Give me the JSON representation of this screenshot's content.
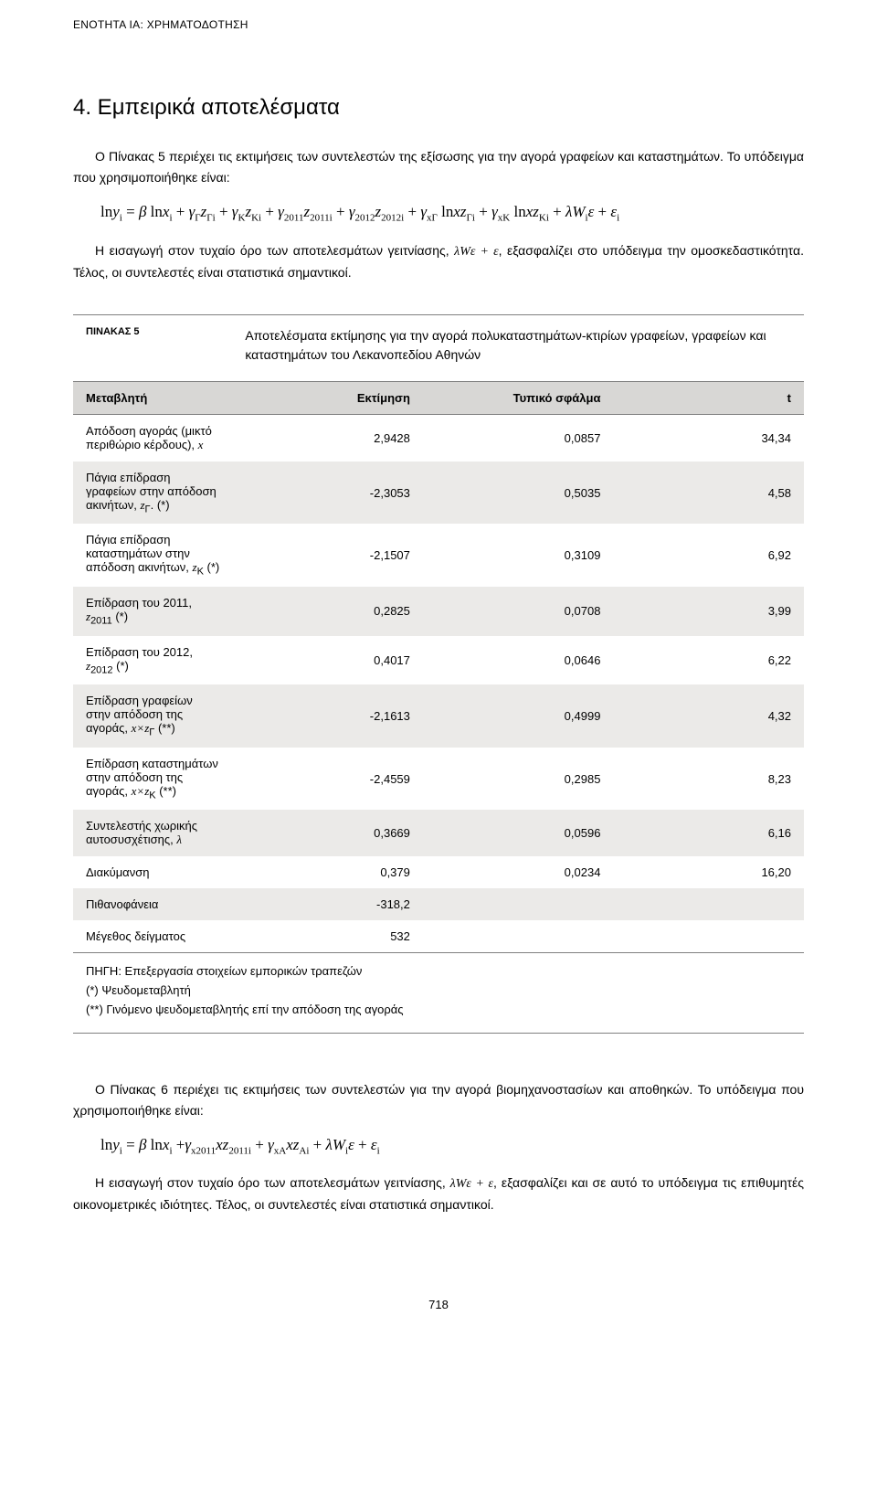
{
  "header": "ΕΝΟΤΗΤΑ ΙΑ: ΧΡΗΜΑΤΟΔΟΤΗΣΗ",
  "section_title": "4. Εμπειρικά αποτελέσματα",
  "para1": "Ο Πίνακας 5 περιέχει τις εκτιμήσεις των συντελεστών της εξίσωσης για την αγορά γραφείων και καταστημάτων. Το υπόδειγμα που χρησιμοποιήθηκε είναι:",
  "formula1_html": "ln<span class=\"it\">y</span><sub>i</sub> = <span class=\"it\">β</span> ln<span class=\"it\">x</span><sub>i</sub> + <span class=\"it\">γ</span><sub>Γ</sub><span class=\"it\">z</span><sub>Γi</sub> + <span class=\"it\">γ</span><sub>K</sub><span class=\"it\">z</span><sub>Ki</sub> + <span class=\"it\">γ</span><sub>2011</sub><span class=\"it\">z</span><sub>2011i</sub> + <span class=\"it\">γ</span><sub>2012</sub><span class=\"it\">z</span><sub>2012i</sub> + <span class=\"it\">γ</span><sub>xΓ</sub> ln<span class=\"it\">xz</span><sub>Γi</sub> + <span class=\"it\">γ</span><sub>xK</sub> ln<span class=\"it\">xz</span><sub>Ki</sub> + <span class=\"it\">λW</span><sub>i</sub><span class=\"it\">ε</span> + <span class=\"it\">ε</span><sub>i</sub>",
  "para2_html": "Η εισαγωγή στον τυχαίο όρο των αποτελεσμάτων γειτνίασης, <span class=\"math\" style=\"font-family:'Times New Roman',serif;font-style:italic;\">λWε + ε</span>, εξασφαλίζει στο υπόδειγμα την ομοσκεδαστικότητα. Τέλος, οι συντελεστές είναι στατιστικά σημαντικοί.",
  "table": {
    "caption_label": "ΠΙΝΑΚΑΣ 5",
    "caption_text": "Αποτελέσματα εκτίμησης για την αγορά πολυκαταστημάτων-κτιρίων γραφείων, γραφείων και καταστημάτων του Λεκανοπεδίου Αθηνών",
    "columns": [
      "Μεταβλητή",
      "Εκτίμηση",
      "Τυπικό σφάλμα",
      "t"
    ],
    "rows": [
      {
        "label_html": "Απόδοση αγοράς (μικτό περιθώριο κέρδους), <span class=\"math\">x</span>",
        "v": [
          "2,9428",
          "0,0857",
          "34,34"
        ]
      },
      {
        "label_html": "Πάγια επίδραση γραφείων στην απόδοση ακινήτων, <span class=\"math\">z</span><sub>Γ</sub>. (*)",
        "v": [
          "-2,3053",
          "0,5035",
          "4,58"
        ]
      },
      {
        "label_html": "Πάγια επίδραση καταστημάτων στην απόδοση ακινήτων, <span class=\"math\">z</span><sub>K</sub> (*)",
        "v": [
          "-2,1507",
          "0,3109",
          "6,92"
        ]
      },
      {
        "label_html": "Επίδραση του 2011, <span class=\"math\">z</span><sub>2011</sub> (*)",
        "v": [
          "0,2825",
          "0,0708",
          "3,99"
        ]
      },
      {
        "label_html": "Επίδραση του 2012, <span class=\"math\">z</span><sub>2012</sub> (*)",
        "v": [
          "0,4017",
          "0,0646",
          "6,22"
        ]
      },
      {
        "label_html": "Επίδραση γραφείων στην απόδοση της αγοράς, <span class=\"math\">x×z</span><sub>Γ</sub> (**)",
        "v": [
          "-2,1613",
          "0,4999",
          "4,32"
        ]
      },
      {
        "label_html": "Επίδραση καταστημάτων στην απόδοση της αγοράς, <span class=\"math\">x×z</span><sub>K</sub> (**)",
        "v": [
          "-2,4559",
          "0,2985",
          "8,23"
        ]
      },
      {
        "label_html": "Συντελεστής χωρικής αυτοσυσχέτισης, <span class=\"math\">λ</span>",
        "v": [
          "0,3669",
          "0,0596",
          "6,16"
        ]
      },
      {
        "label_html": "Διακύμανση",
        "v": [
          "0,379",
          "0,0234",
          "16,20"
        ]
      },
      {
        "label_html": "Πιθανοφάνεια",
        "v": [
          "-318,2",
          "",
          ""
        ]
      },
      {
        "label_html": "Μέγεθος δείγματος",
        "v": [
          "532",
          "",
          ""
        ]
      }
    ],
    "notes": "ΠΗΓΗ: Επεξεργασία στοιχείων εμπορικών τραπεζών\n(*) Ψευδομεταβλητή\n(**) Γινόμενο ψευδομεταβλητής επί την απόδοση της αγοράς"
  },
  "para3": "Ο Πίνακας 6 περιέχει τις εκτιμήσεις των συντελεστών για την αγορά βιομηχανοστασίων και αποθηκών. Το υπόδειγμα που χρησιμοποιήθηκε είναι:",
  "formula2_html": "ln<span class=\"it\">y</span><sub>i</sub> = <span class=\"it\">β</span> ln<span class=\"it\">x</span><sub>i</sub> +<span class=\"it\">γ</span><sub>x2011</sub><span class=\"it\">xz</span><sub>2011i</sub> + <span class=\"it\">γ</span><sub>xA</sub><span class=\"it\">xz</span><sub>Ai</sub> + <span class=\"it\">λW</span><sub>i</sub><span class=\"it\">ε</span> + <span class=\"it\">ε</span><sub>i</sub>",
  "para4_html": "Η εισαγωγή στον τυχαίο όρο των αποτελεσμάτων γειτνίασης, <span class=\"math\" style=\"font-family:'Times New Roman',serif;font-style:italic;\">λWε + ε</span>, εξασφαλίζει και σε αυτό το υπόδειγμα τις επιθυμητές οικονομετρικές ιδιότητες. Τέλος, οι συντελεστές είναι στατιστικά σημαντικοί.",
  "page_number": "718",
  "colors": {
    "row_alt": "#ebeae8",
    "head_bg": "#d8d7d5",
    "border": "#808080"
  }
}
